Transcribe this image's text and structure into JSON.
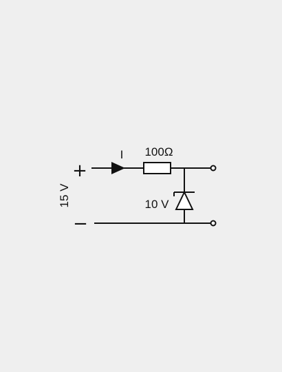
{
  "circuit": {
    "supply_voltage": "15 V",
    "plus_sign": "+",
    "minus_sign": "−",
    "current_label": "I",
    "resistor_label": "100Ω",
    "zener_label": "10 V"
  },
  "colors": {
    "background": "#efefef",
    "line": "#111111",
    "component_fill": "#ffffff"
  }
}
